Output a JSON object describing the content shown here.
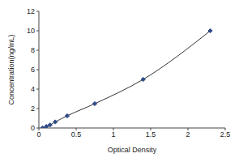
{
  "chart_data": {
    "type": "line",
    "x_label": "Optical Density",
    "y_label": "Concentration(ng/mL)",
    "x": [
      0.05,
      0.1,
      0.15,
      0.22,
      0.38,
      0.75,
      1.4,
      2.3
    ],
    "values": [
      0,
      0.156,
      0.312,
      0.625,
      1.25,
      2.5,
      5,
      10
    ],
    "color": "#2e4a86",
    "marker": "diamond",
    "xlim": [
      0,
      2.5
    ],
    "xticks": [
      0,
      0.5,
      1,
      1.5,
      2,
      2.5
    ],
    "ylim": [
      0,
      12
    ],
    "yticks": [
      0,
      2,
      4,
      6,
      8,
      10,
      12
    ],
    "grid": false
  }
}
